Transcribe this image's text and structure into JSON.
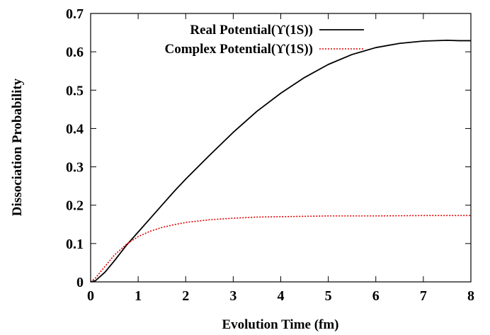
{
  "chart_data": {
    "type": "line",
    "title": "",
    "xlabel": "Evolution Time (fm)",
    "ylabel": "Dissociation Probability",
    "xlim": [
      0,
      8
    ],
    "ylim": [
      0,
      0.7
    ],
    "xticks": [
      "0",
      "1",
      "2",
      "3",
      "4",
      "5",
      "6",
      "7",
      "8"
    ],
    "yticks": [
      "0",
      "0.1",
      "0.2",
      "0.3",
      "0.4",
      "0.5",
      "0.6",
      "0.7"
    ],
    "grid": false,
    "legend_position": "top-right",
    "series": [
      {
        "name": "Real Potential(ϒ(1S))",
        "color": "#000000",
        "style": "solid",
        "x": [
          0,
          0.1,
          0.3,
          0.5,
          0.75,
          1.0,
          1.25,
          1.5,
          1.75,
          2.0,
          2.5,
          3.0,
          3.5,
          4.0,
          4.5,
          5.0,
          5.5,
          6.0,
          6.5,
          7.0,
          7.5,
          7.75,
          8.0
        ],
        "y": [
          0,
          0.003,
          0.025,
          0.055,
          0.095,
          0.13,
          0.165,
          0.2,
          0.235,
          0.268,
          0.33,
          0.39,
          0.445,
          0.492,
          0.533,
          0.567,
          0.593,
          0.611,
          0.622,
          0.628,
          0.63,
          0.629,
          0.629
        ]
      },
      {
        "name": "Complex Potential(ϒ(1S))",
        "color": "#e00000",
        "style": "dotted",
        "x": [
          0,
          0.1,
          0.3,
          0.5,
          0.75,
          1.0,
          1.25,
          1.5,
          1.75,
          2.0,
          2.5,
          3.0,
          3.5,
          4.0,
          5.0,
          6.0,
          7.0,
          8.0
        ],
        "y": [
          0,
          0.01,
          0.04,
          0.07,
          0.098,
          0.118,
          0.132,
          0.142,
          0.149,
          0.155,
          0.162,
          0.166,
          0.169,
          0.17,
          0.172,
          0.172,
          0.173,
          0.173
        ]
      }
    ]
  }
}
